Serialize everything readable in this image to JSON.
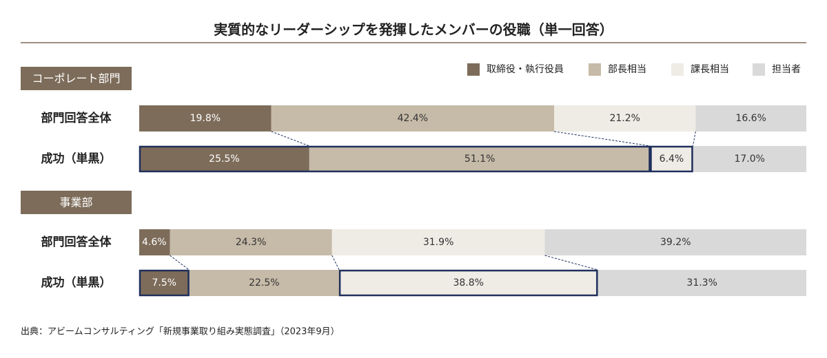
{
  "chart_data": {
    "type": "bar",
    "orientation": "horizontal",
    "stacked": "100%",
    "title": "実質的なリーダーシップを発揮したメンバーの役職（単一回答）",
    "legend_position": "top-right",
    "series": [
      {
        "name": "取締役・執行役員",
        "color": "#7d6c5a"
      },
      {
        "name": "部長相当",
        "color": "#c6baa8"
      },
      {
        "name": "課長相当",
        "color": "#efebe5"
      },
      {
        "name": "担当者",
        "color": "#d9d9d9"
      }
    ],
    "groups": [
      {
        "label": "コーポレート部門",
        "rows": [
          {
            "label": "部門回答全体",
            "values": [
              19.8,
              42.4,
              21.2,
              16.6
            ],
            "labels": [
              "19.8%",
              "42.4%",
              "21.2%",
              "16.6%"
            ],
            "highlight": []
          },
          {
            "label": "成功（単黒）",
            "values": [
              25.5,
              51.1,
              6.4,
              17.0
            ],
            "labels": [
              "25.5%",
              "51.1%",
              "6.4%",
              "17.0%"
            ],
            "highlight": [
              [
                0,
                1
              ],
              [
                2,
                2
              ]
            ]
          }
        ]
      },
      {
        "label": "事業部",
        "rows": [
          {
            "label": "部門回答全体",
            "values": [
              4.6,
              24.3,
              31.9,
              39.2
            ],
            "labels": [
              "4.6%",
              "24.3%",
              "31.9%",
              "39.2%"
            ],
            "highlight": []
          },
          {
            "label": "成功（単黒）",
            "values": [
              7.5,
              22.5,
              38.8,
              31.3
            ],
            "labels": [
              "7.5%",
              "22.5%",
              "38.8%",
              "31.3%"
            ],
            "highlight": [
              [
                0,
                0
              ],
              [
                2,
                2
              ]
            ]
          }
        ]
      }
    ],
    "source": "出典：アビームコンサルティング「新規事業取り組み実態調査」（2023年9月）"
  },
  "colors": {
    "highlight_border": "#1f2f5c",
    "group_header_bg": "#7d6c5a",
    "rule": "#7d6c5a",
    "dark_text": "#ffffff",
    "light_text": "#333333"
  }
}
